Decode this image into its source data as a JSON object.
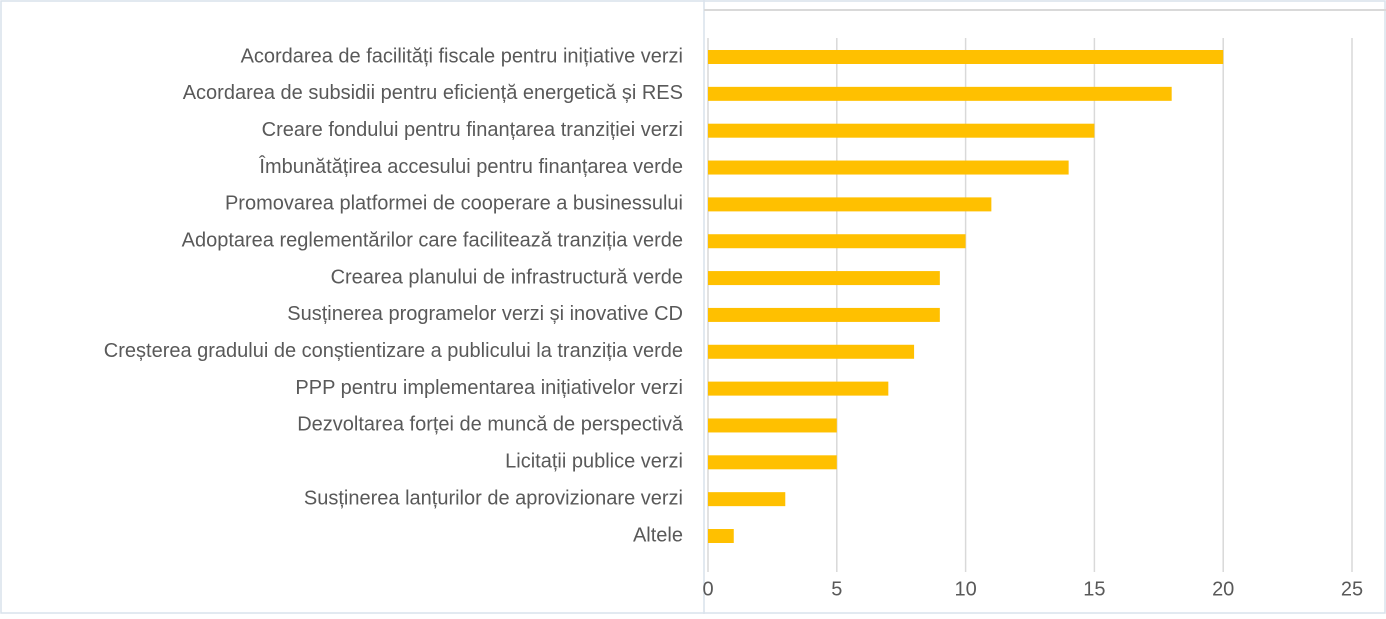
{
  "chart_data": {
    "type": "bar",
    "orientation": "horizontal",
    "categories": [
      "Acordarea de facilități fiscale pentru inițiative verzi",
      "Acordarea de subsidii pentru eficiență energetică și RES",
      "Creare fondului pentru finanțarea tranziției verzi",
      "Îmbunătățirea accesului pentru finanțarea verde",
      "Promovarea platformei de cooperare a businessului",
      "Adoptarea reglementărilor care facilitează tranziția verde",
      "Crearea planului de infrastructură verde",
      "Susținerea programelor verzi și inovative CD",
      "Creșterea gradului de conștientizare a publicului la tranziția verde",
      "PPP pentru implementarea inițiativelor verzi",
      "Dezvoltarea forței de muncă de perspectivă",
      "Licitații publice verzi",
      "Susținerea lanțurilor de aprovizionare verzi",
      "Altele"
    ],
    "values": [
      20,
      18,
      15,
      14,
      11,
      10,
      9,
      9,
      8,
      7,
      5,
      5,
      3,
      1
    ],
    "color": "#ffc000",
    "xlim": [
      0,
      25
    ],
    "xticks": [
      0,
      5,
      10,
      15,
      20,
      25
    ],
    "grid": true
  }
}
